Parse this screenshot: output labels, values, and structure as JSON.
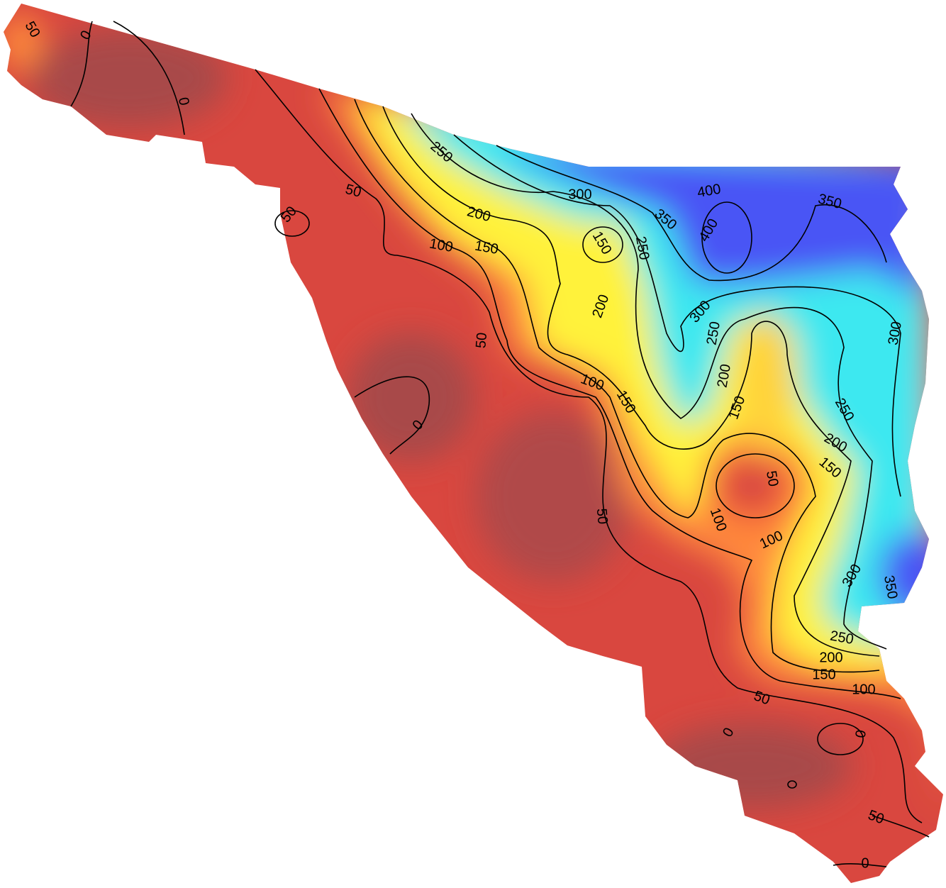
{
  "contour_labels": [
    50,
    0,
    0,
    250,
    300,
    400,
    350,
    350,
    400,
    50,
    50,
    200,
    150,
    250,
    100,
    150,
    200,
    300,
    250,
    300,
    50,
    200,
    100,
    150,
    150,
    250,
    0,
    200,
    150,
    50,
    50,
    100,
    100,
    300,
    350,
    250,
    200,
    150,
    100,
    50,
    0,
    0,
    50,
    0
  ]
}
